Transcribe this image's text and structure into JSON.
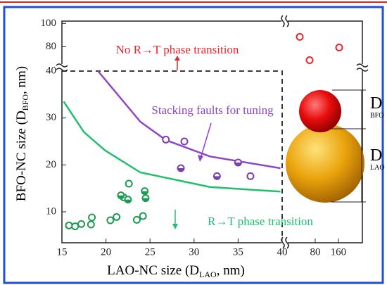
{
  "chart_data": [
    {
      "type": "scatter",
      "x_label": [
        "LAO-NC size (D",
        "LAO",
        ",  nm)"
      ],
      "y_label": [
        "BFO-NC size (D",
        "BFO",
        ",  nm)"
      ],
      "xlim": [
        15,
        40
      ],
      "ylim": [
        3.4,
        40
      ],
      "xticks": [
        15,
        20,
        25,
        30,
        35,
        40
      ],
      "yticks": [
        10,
        20,
        30,
        40
      ],
      "series": [
        {
          "marker": "hollow",
          "color": "#7b3fb0",
          "x": [
            26.8,
            28.9,
            36.4
          ],
          "values": [
            25.4,
            25.0,
            17.6
          ]
        },
        {
          "marker": "half",
          "color": "#7b3fb0",
          "x": [
            28.5,
            32.6,
            35.0
          ],
          "values": [
            19.3,
            17.6,
            20.5
          ]
        },
        {
          "marker": "hollow",
          "color": "#1f9a55",
          "x": [
            15.8,
            16.5,
            17.2,
            18.3,
            18.4,
            20.5,
            21.2,
            22.0,
            22.6,
            23.5,
            24.2
          ],
          "values": [
            7.1,
            6.9,
            7.4,
            7.3,
            8.8,
            8.2,
            8.9,
            13.1,
            16.0,
            8.3,
            9.1
          ]
        },
        {
          "marker": "half",
          "color": "#1f9a55",
          "x": [
            21.7,
            22.5,
            24.4,
            24.5
          ],
          "values": [
            13.5,
            12.6,
            14.4,
            12.9
          ]
        }
      ],
      "curves": [
        {
          "color": "#8e44c6",
          "x": [
            19.1,
            21.5,
            23.9,
            26.8,
            31.8,
            39.8
          ],
          "values": [
            40,
            34.6,
            29.2,
            25.3,
            21.8,
            19.3
          ]
        },
        {
          "color": "#1fbf6e",
          "x": [
            15.2,
            17.5,
            19.9,
            23.9,
            31.8,
            39.8
          ],
          "values": [
            33.5,
            27.0,
            23.1,
            18.4,
            15.3,
            14.3
          ]
        }
      ],
      "annotations": [
        {
          "text": "No R→T phase transition",
          "color": "#e8262b"
        },
        {
          "text": "Stacking faults for tuning",
          "color": "#8e44c6"
        },
        {
          "text": "R→T phase transition",
          "color": "#1fbf6e"
        }
      ],
      "size_labels": [
        [
          "D",
          "BFO"
        ],
        [
          "D",
          "LAO"
        ]
      ]
    },
    {
      "type": "scatter",
      "xscale": "log",
      "xlim": [
        32.4,
        328
      ],
      "ylim": [
        64,
        102
      ],
      "xticks": [
        80,
        160
      ],
      "yticks": [
        80,
        100
      ],
      "series": [
        {
          "marker": "hollow",
          "color": "#e8262b",
          "x": [
            50.4,
            67.7,
            163.9
          ],
          "values": [
            88.5,
            68.5,
            79.4
          ]
        }
      ]
    }
  ]
}
